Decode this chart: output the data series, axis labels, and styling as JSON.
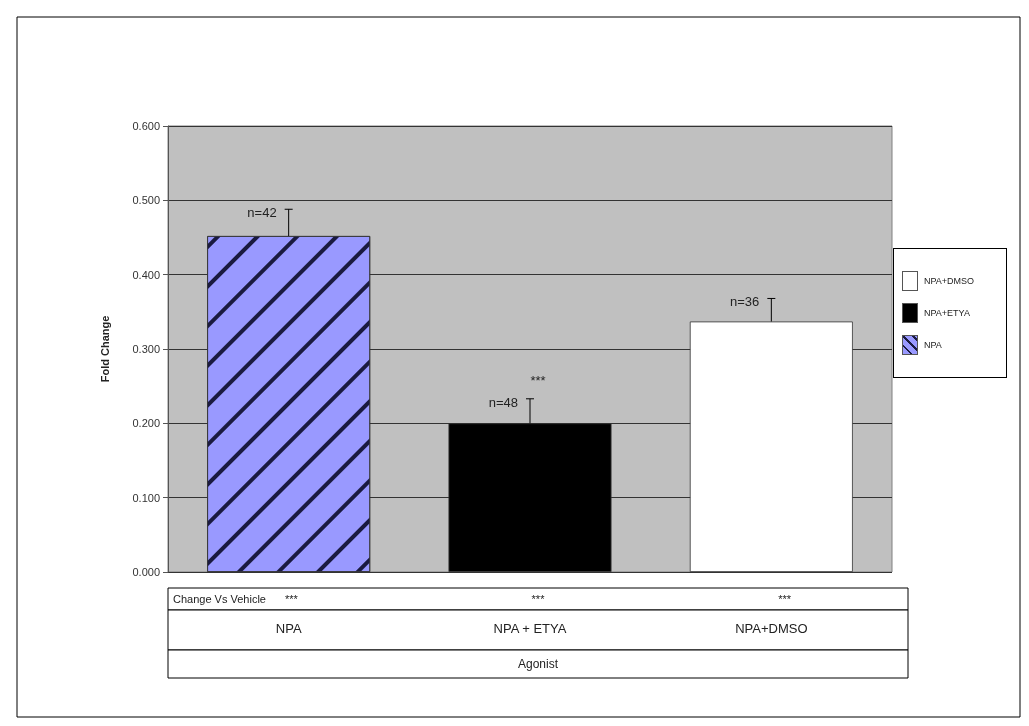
{
  "chart_data": {
    "type": "bar",
    "stacked": true,
    "ylabel": "Fold Change",
    "xlabel": "Agonist",
    "categories": [
      "NPA",
      "NPA + ETYA",
      "NPA+DMSO"
    ],
    "series": [
      {
        "name": "NPA",
        "color": "#9999ff",
        "values": [
          0.452,
          null,
          null
        ],
        "errors": [
          [
            0.452,
            0.488
          ],
          null,
          null
        ]
      },
      {
        "name": "NPA+ETYA",
        "color": "#000000",
        "values": [
          null,
          0.2,
          null
        ],
        "errors": [
          null,
          [
            0.2,
            0.233
          ],
          null
        ]
      },
      {
        "name": "NPA+DMSO",
        "color": "#ffffff",
        "values": [
          null,
          null,
          0.337
        ],
        "errors": [
          null,
          null,
          [
            0.337,
            0.368
          ]
        ]
      }
    ],
    "ylim": [
      0,
      0.6
    ],
    "yticks": [
      {
        "value": 0,
        "label": "0.000"
      },
      {
        "value": 0.1,
        "label": "0.100"
      },
      {
        "value": 0.2,
        "label": "0.200"
      },
      {
        "value": 0.3,
        "label": "0.300"
      },
      {
        "value": 0.4,
        "label": "0.400"
      },
      {
        "value": 0.5,
        "label": "0.500"
      },
      {
        "value": 0.6,
        "label": "0.600"
      }
    ],
    "grid": "y",
    "legend": "right",
    "annotations": [
      {
        "text": "n=42",
        "x": "NPA",
        "y": 0.48
      },
      {
        "text": "n=48",
        "x": "NPA + ETYA",
        "y": 0.225
      },
      {
        "text": "n=36",
        "x": "NPA+DMSO",
        "y": 0.36
      },
      "***",
      "Change Vs Vehicle",
      "***",
      "***",
      "***"
    ]
  }
}
